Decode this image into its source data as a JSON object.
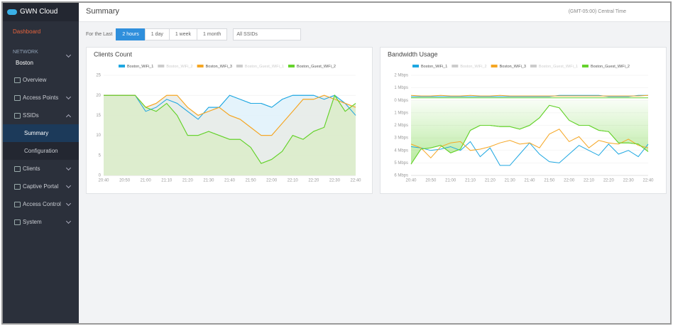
{
  "sidebar": {
    "brand": "GWN Cloud",
    "dashboard": "Dashboard",
    "section": "NETWORK",
    "network": "Boston",
    "items": [
      {
        "label": "Overview"
      },
      {
        "label": "Access Points"
      },
      {
        "label": "SSIDs",
        "children": [
          "Summary",
          "Configuration"
        ],
        "active_child": 0
      },
      {
        "label": "Clients"
      },
      {
        "label": "Captive Portal"
      },
      {
        "label": "Access Control"
      },
      {
        "label": "System"
      }
    ]
  },
  "header": {
    "title": "Summary",
    "timezone": "(GMT-05:00) Central Time"
  },
  "filters": {
    "label": "For the Last",
    "ranges": [
      "2 hours",
      "1 day",
      "1 week",
      "1 month"
    ],
    "active": 0,
    "ssid": "All SSIDs"
  },
  "chart_data": [
    {
      "type": "line",
      "title": "Clients Count",
      "categories": [
        "20:40",
        null,
        "20:50",
        null,
        "21:00",
        null,
        "21:10",
        null,
        "21:20",
        null,
        "21:30",
        null,
        "21:40",
        null,
        "21:50",
        null,
        "22:00",
        null,
        "22:10",
        null,
        "22:20",
        null,
        "22:30",
        null,
        "22:40"
      ],
      "ylim": [
        0,
        25
      ],
      "yticks": [
        0,
        5,
        10,
        15,
        20,
        25
      ],
      "series": [
        {
          "name": "Boston_WiFi_1",
          "color": "#1ea7e1",
          "fill": "#dff1fa",
          "values": [
            20,
            20,
            20,
            20,
            16,
            17,
            19,
            18,
            16,
            14,
            17,
            17,
            20,
            19,
            18,
            18,
            17,
            19,
            20,
            20,
            20,
            19,
            20,
            18,
            15
          ]
        },
        {
          "name": "Boston_WiFi_2",
          "color": "#cccccc",
          "hidden": true
        },
        {
          "name": "Boston_WiFi_3",
          "color": "#f5a623",
          "fill": "#e9ebe6",
          "values": [
            20,
            20,
            20,
            20,
            17,
            18,
            20,
            20,
            17,
            15,
            16,
            17,
            15,
            14,
            12,
            10,
            10,
            13,
            16,
            19,
            19,
            20,
            19,
            18,
            17
          ]
        },
        {
          "name": "Boston_Guest_WiFi_1",
          "color": "#cccccc",
          "hidden": true
        },
        {
          "name": "Boston_Guest_WiFi_2",
          "color": "#65d22c",
          "fill": "#dbecc9",
          "values": [
            20,
            20,
            20,
            20,
            17,
            16,
            18,
            15,
            10,
            10,
            11,
            10,
            9,
            9,
            7,
            3,
            4,
            6,
            10,
            9,
            11,
            12,
            20,
            16,
            18
          ]
        }
      ]
    },
    {
      "type": "line",
      "title": "Bandwidth Usage",
      "categories": [
        "20:40",
        null,
        "20:50",
        null,
        "21:00",
        null,
        "21:10",
        null,
        "21:20",
        null,
        "21:30",
        null,
        "21:40",
        null,
        "21:50",
        null,
        "22:00",
        null,
        "22:10",
        null,
        "22:20",
        null,
        "22:30",
        null,
        "22:40"
      ],
      "ylim": [
        -6,
        2
      ],
      "yticks": [
        {
          "value": 2,
          "label": "2 Mbps"
        },
        {
          "value": 1,
          "label": "1 Mbps"
        },
        {
          "value": 0,
          "label": "0 Mbps"
        },
        {
          "value": -1,
          "label": "1 Mbps"
        },
        {
          "value": -2,
          "label": "2 Mbps"
        },
        {
          "value": -3,
          "label": "3 Mbps"
        },
        {
          "value": -4,
          "label": "4 Mbps"
        },
        {
          "value": -5,
          "label": "5 Mbps"
        },
        {
          "value": -6,
          "label": "6 Mbps"
        }
      ],
      "series": [
        {
          "name": "Boston_WiFi_1",
          "color": "#1ea7e1",
          "values": [
            -3.7,
            -3.8,
            -4.0,
            -3.9,
            -3.7,
            -4.0,
            -3.3,
            -4.5,
            -3.8,
            -5.2,
            -5.2,
            -4.3,
            -3.4,
            -4.3,
            -4.9,
            -5.0,
            -4.3,
            -3.6,
            -4.0,
            -4.4,
            -3.5,
            -4.3,
            -4.0,
            -4.5,
            -3.5
          ],
          "upload": [
            0.3,
            0.3,
            0.3,
            0.3,
            0.3,
            0.3,
            0.3,
            0.3,
            0.3,
            0.3,
            0.3,
            0.3,
            0.3,
            0.3,
            0.3,
            0.4,
            0.4,
            0.4,
            0.4,
            0.4,
            0.3,
            0.3,
            0.3,
            0.4,
            0.4
          ]
        },
        {
          "name": "Boston_WiFi_2",
          "color": "#cccccc",
          "hidden": true
        },
        {
          "name": "Boston_WiFi_3",
          "color": "#f5a623",
          "values": [
            -3.5,
            -3.8,
            -4.6,
            -3.7,
            -3.4,
            -3.3,
            -4.0,
            -3.9,
            -3.7,
            -3.4,
            -3.2,
            -3.5,
            -3.4,
            -3.8,
            -2.7,
            -2.3,
            -3.3,
            -2.9,
            -3.8,
            -3.2,
            -3.4,
            -3.5,
            -3.1,
            -3.6,
            -3.8
          ],
          "upload": [
            0.4,
            0.35,
            0.35,
            0.4,
            0.35,
            0.35,
            0.4,
            0.35,
            0.35,
            0.4,
            0.35,
            0.35,
            0.35,
            0.35,
            0.35,
            0.35,
            0.35,
            0.35,
            0.35,
            0.35,
            0.35,
            0.35,
            0.35,
            0.35,
            0.4
          ]
        },
        {
          "name": "Boston_Guest_WiFi_1",
          "color": "#cccccc",
          "hidden": true
        },
        {
          "name": "Boston_Guest_WiFi_2",
          "color": "#65d22c",
          "gradient": true,
          "values": [
            -5.1,
            -3.9,
            -3.8,
            -3.6,
            -4.2,
            -3.9,
            -2.4,
            -2.0,
            -2.0,
            -2.1,
            -2.1,
            -2.3,
            -2.0,
            -1.4,
            -0.4,
            -0.6,
            -1.6,
            -2.0,
            -2.0,
            -2.4,
            -2.5,
            -3.4,
            -3.4,
            -3.5,
            -4.1
          ],
          "upload": [
            0.2,
            0.2,
            0.2,
            0.2,
            0.2,
            0.2,
            0.2,
            0.2,
            0.2,
            0.2,
            0.2,
            0.2,
            0.2,
            0.2,
            0.2,
            0.2,
            0.2,
            0.2,
            0.2,
            0.2,
            0.2,
            0.2,
            0.2,
            0.2,
            0.2
          ]
        }
      ]
    }
  ]
}
